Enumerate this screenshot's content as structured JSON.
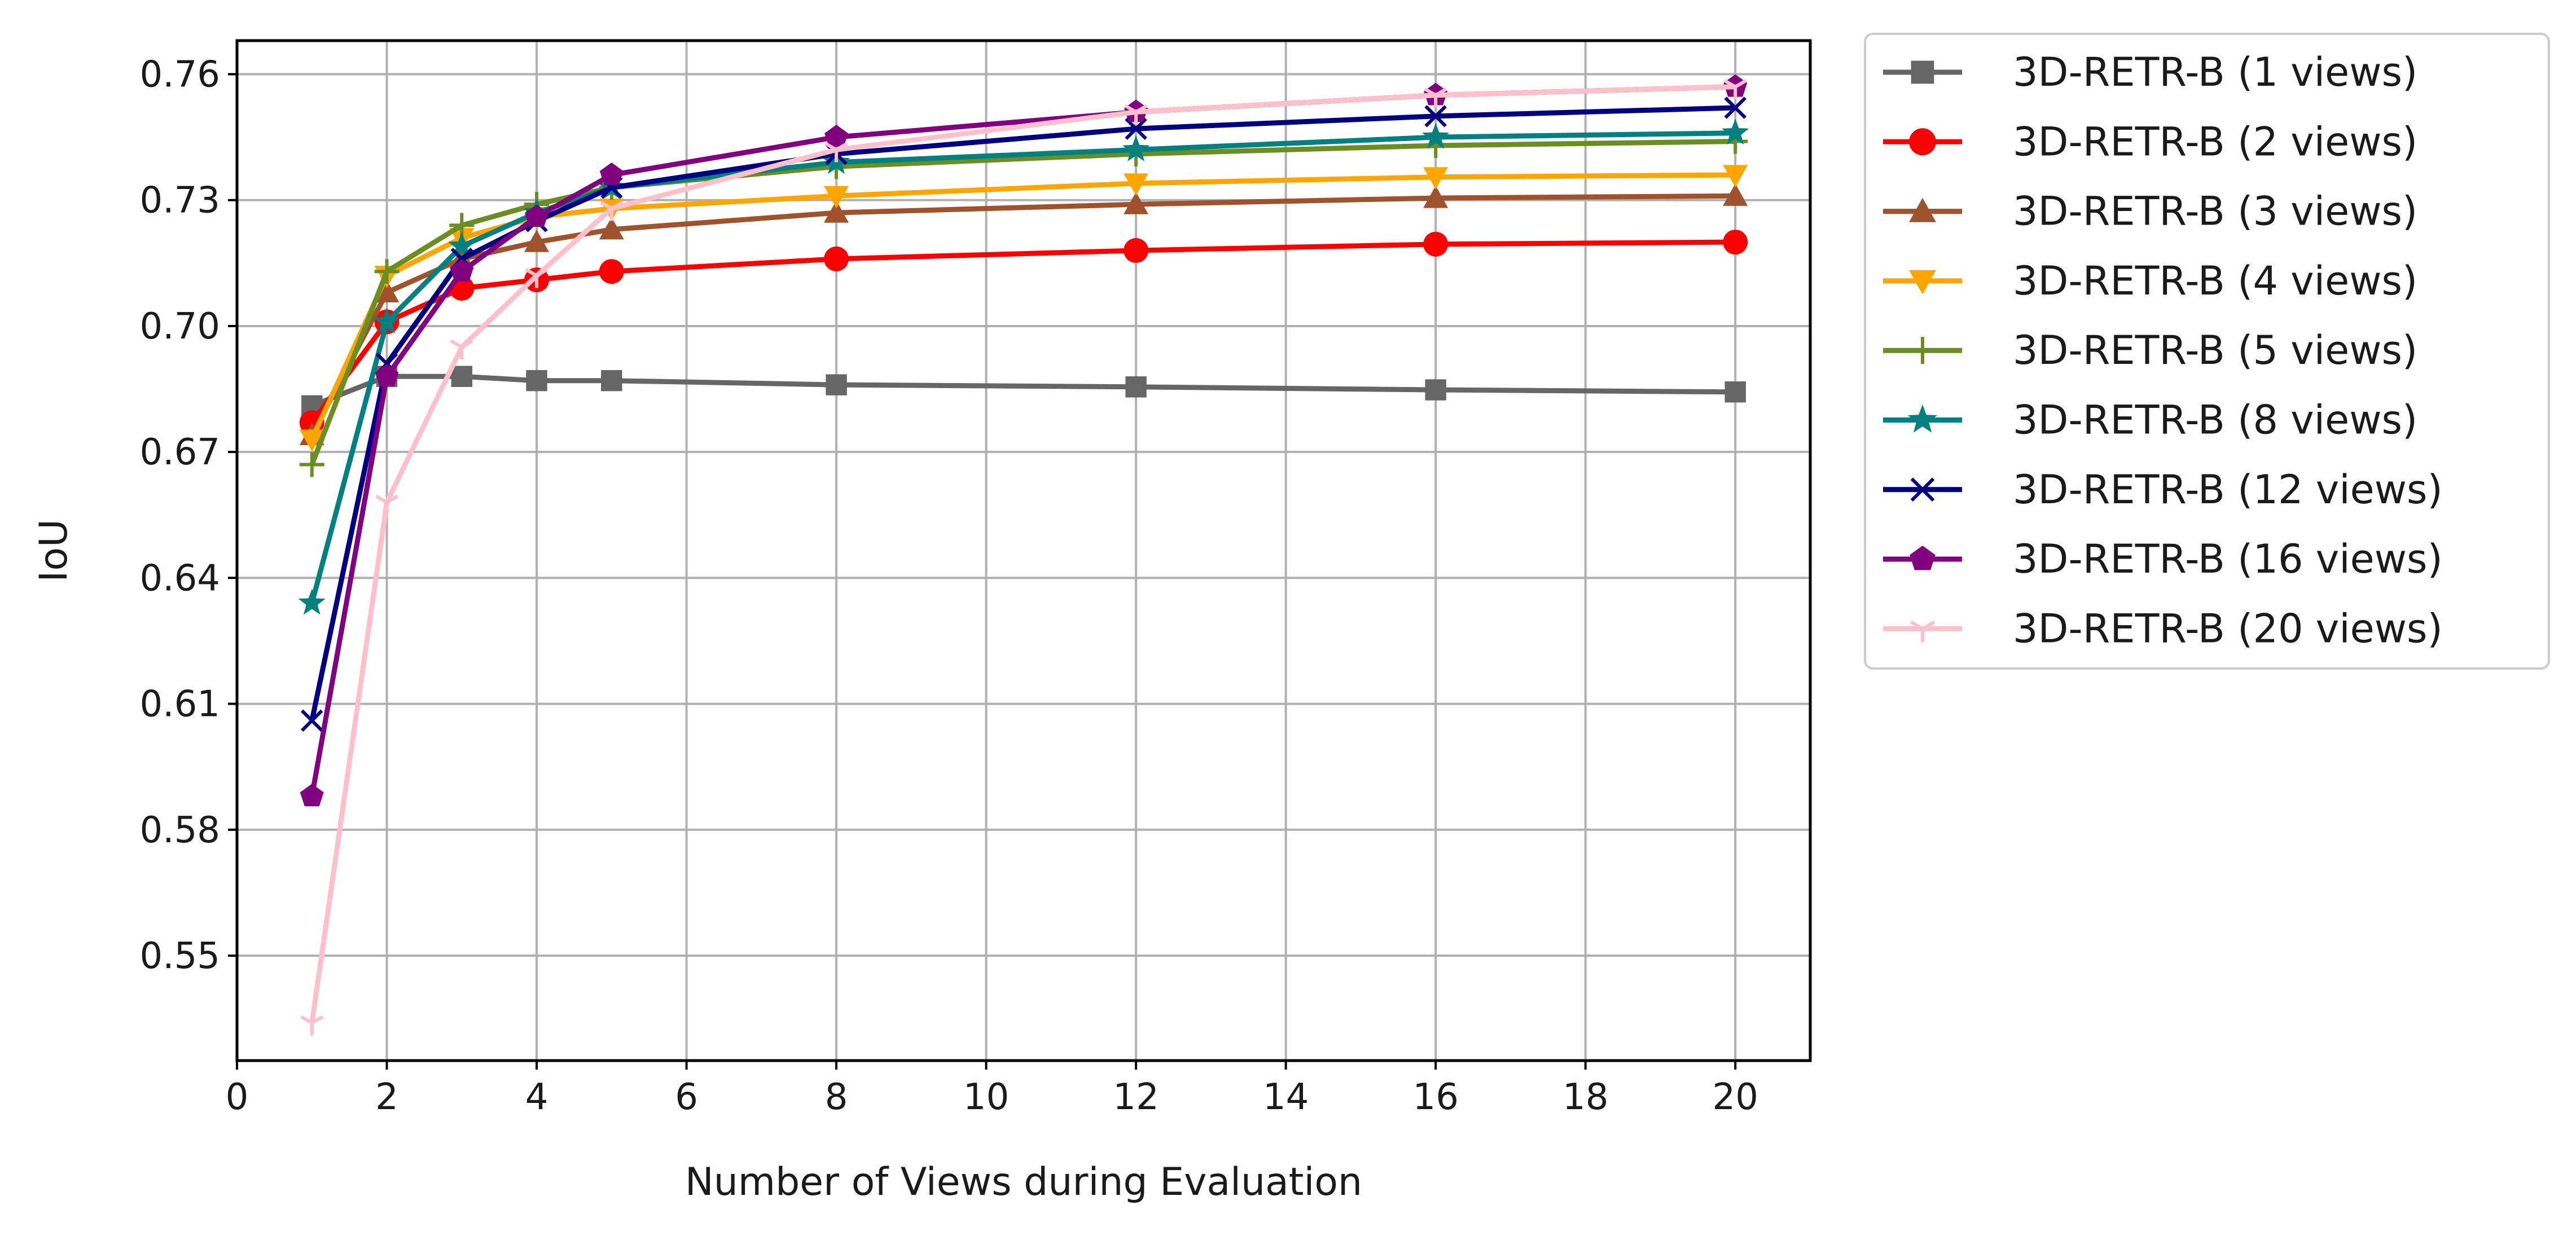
{
  "chart_data": {
    "type": "line",
    "title": "",
    "xlabel": "Number of Views during Evaluation",
    "ylabel": "IoU",
    "xlim": [
      0,
      21
    ],
    "ylim": [
      0.525,
      0.768
    ],
    "x_ticks": [
      0,
      2,
      4,
      6,
      8,
      10,
      12,
      14,
      16,
      18,
      20
    ],
    "y_ticks": [
      0.55,
      0.58,
      0.61,
      0.64,
      0.67,
      0.7,
      0.73,
      0.76
    ],
    "y_tick_labels": [
      "0.55",
      "0.58",
      "0.61",
      "0.64",
      "0.67",
      "0.70",
      "0.73",
      "0.76"
    ],
    "grid": true,
    "legend_position": "outside-right-top",
    "x": [
      1,
      2,
      3,
      4,
      5,
      8,
      12,
      16,
      20
    ],
    "series": [
      {
        "name": "3D-RETR-B (1 views)",
        "color": "#666666",
        "marker": "square",
        "values": [
          0.681,
          0.688,
          0.688,
          0.687,
          0.687,
          0.686,
          0.6855,
          0.6848,
          0.6843
        ]
      },
      {
        "name": "3D-RETR-B (2 views)",
        "color": "#ff0000",
        "marker": "circle",
        "values": [
          0.677,
          0.701,
          0.709,
          0.711,
          0.713,
          0.716,
          0.718,
          0.7195,
          0.72
        ]
      },
      {
        "name": "3D-RETR-B (3 views)",
        "color": "#a0522d",
        "marker": "triangle-up",
        "values": [
          0.674,
          0.708,
          0.716,
          0.72,
          0.723,
          0.727,
          0.729,
          0.7305,
          0.731
        ]
      },
      {
        "name": "3D-RETR-B (4 views)",
        "color": "#ffa500",
        "marker": "triangle-down",
        "values": [
          0.673,
          0.712,
          0.721,
          0.726,
          0.728,
          0.731,
          0.734,
          0.7355,
          0.736
        ]
      },
      {
        "name": "3D-RETR-B (5 views)",
        "color": "#6b8e23",
        "marker": "plus",
        "values": [
          0.667,
          0.713,
          0.724,
          0.729,
          0.733,
          0.738,
          0.741,
          0.743,
          0.744
        ]
      },
      {
        "name": "3D-RETR-B (8 views)",
        "color": "#008080",
        "marker": "star",
        "values": [
          0.634,
          0.701,
          0.719,
          0.727,
          0.733,
          0.739,
          0.742,
          0.745,
          0.746
        ]
      },
      {
        "name": "3D-RETR-B (12 views)",
        "color": "#000080",
        "marker": "x",
        "values": [
          0.606,
          0.691,
          0.716,
          0.725,
          0.733,
          0.741,
          0.747,
          0.75,
          0.752
        ]
      },
      {
        "name": "3D-RETR-B (16 views)",
        "color": "#800080",
        "marker": "pentagon",
        "values": [
          0.588,
          0.688,
          0.713,
          0.726,
          0.736,
          0.745,
          0.751,
          0.755,
          0.757
        ]
      },
      {
        "name": "3D-RETR-B (20 views)",
        "color": "#ffc0cb",
        "marker": "tri-down",
        "values": [
          0.534,
          0.658,
          0.695,
          0.712,
          0.728,
          0.742,
          0.751,
          0.755,
          0.757
        ]
      }
    ]
  }
}
